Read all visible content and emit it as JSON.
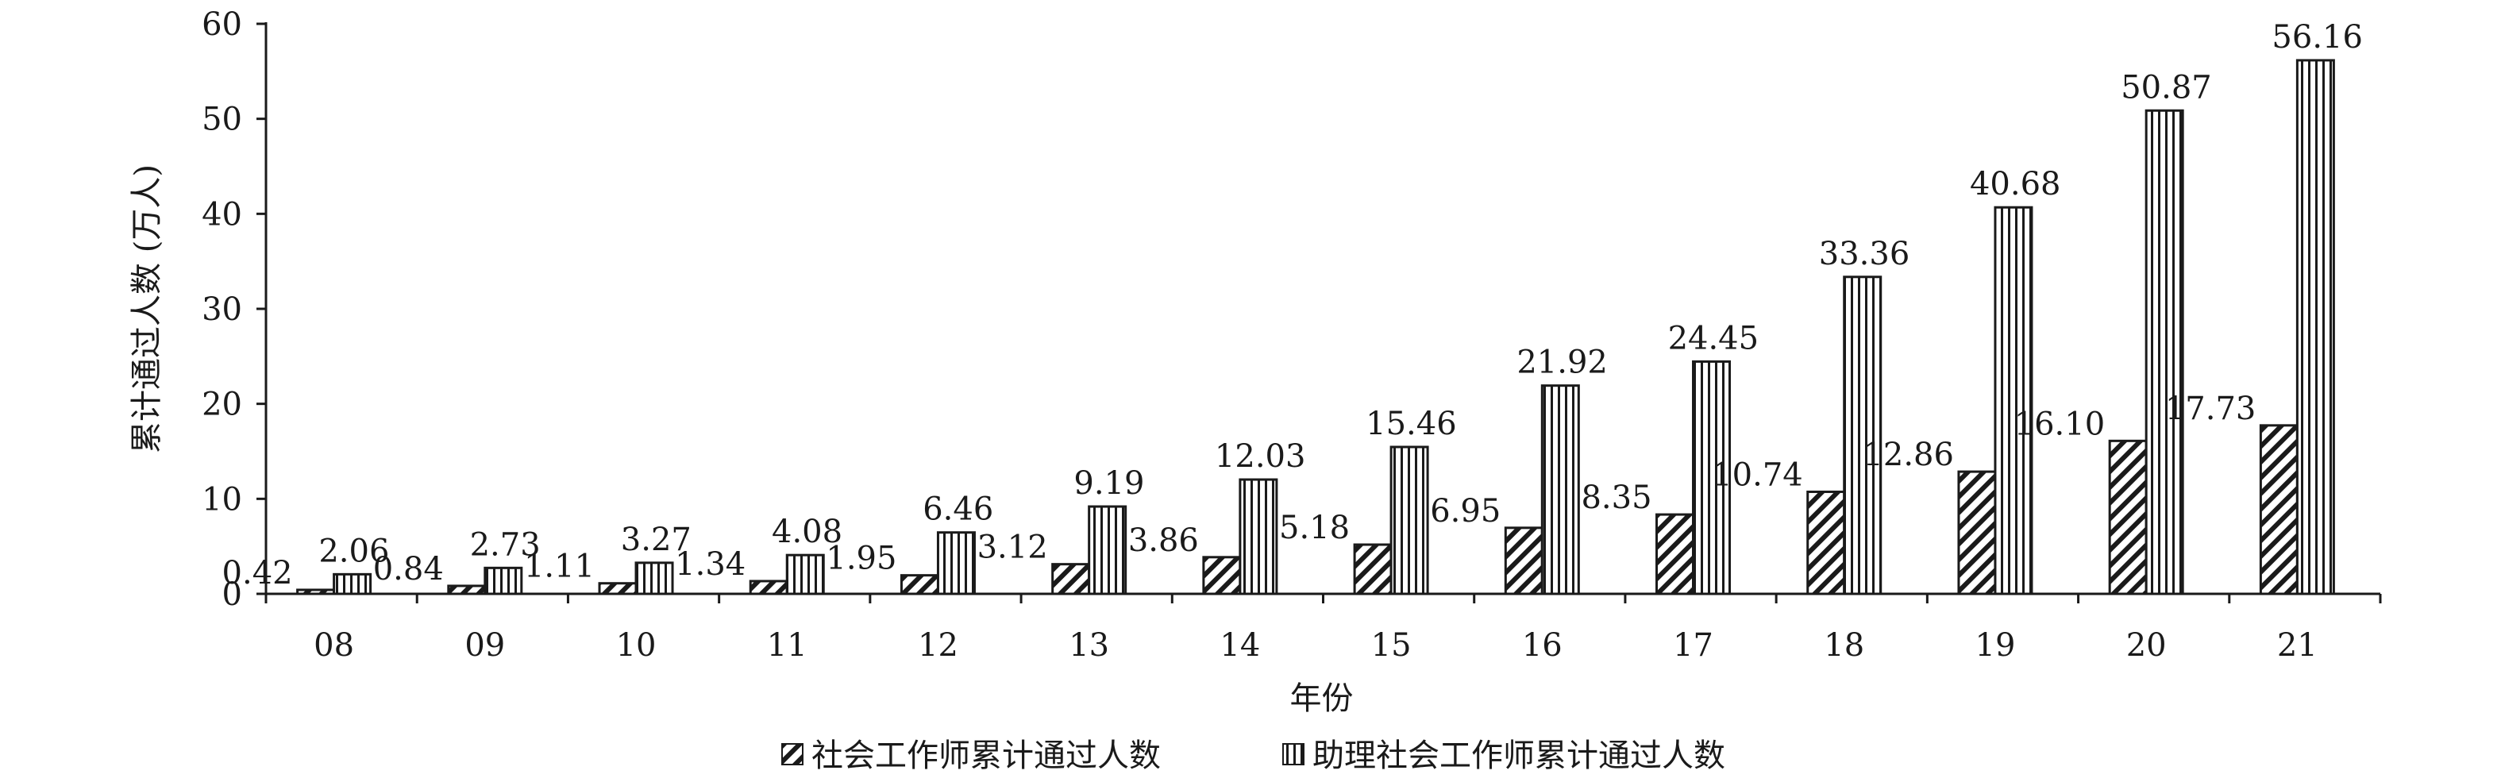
{
  "chart_data": {
    "type": "bar",
    "categories": [
      "08",
      "09",
      "10",
      "11",
      "12",
      "13",
      "14",
      "15",
      "16",
      "17",
      "18",
      "19",
      "20",
      "21"
    ],
    "series": [
      {
        "name": "社会工作师累计通过人数",
        "values": [
          0.42,
          0.84,
          1.11,
          1.34,
          1.95,
          3.12,
          3.86,
          5.18,
          6.95,
          8.35,
          10.74,
          12.86,
          16.1,
          17.73
        ],
        "labels": [
          "0.42",
          "0.84",
          "1.11",
          "1.34",
          "1.95",
          "3.12",
          "3.86",
          "5.18",
          "6.95",
          "8.35",
          "10.74",
          "12.86",
          "16.10",
          "17.73"
        ],
        "pattern": "diagonal-hatch"
      },
      {
        "name": "助理社会工作师累计通过人数",
        "values": [
          2.06,
          2.73,
          3.27,
          4.08,
          6.46,
          9.19,
          12.03,
          15.46,
          21.92,
          24.45,
          33.36,
          40.68,
          50.87,
          56.16
        ],
        "labels": [
          "2.06",
          "2.73",
          "3.27",
          "4.08",
          "6.46",
          "9.19",
          "12.03",
          "15.46",
          "21.92",
          "24.45",
          "33.36",
          "40.68",
          "50.87",
          "56.16"
        ],
        "pattern": "vertical-lines"
      }
    ],
    "xlabel": "年份",
    "ylabel": "累计通过人数 (万人)",
    "ylim": [
      0,
      60
    ],
    "yticks": [
      "0",
      "10",
      "20",
      "30",
      "40",
      "50",
      "60"
    ],
    "grid": false,
    "legend_position": "bottom-center",
    "bar_fill": "#ffffff",
    "bar_stroke": "#1a1a1a",
    "hatch_color": "#1a1a1a"
  }
}
